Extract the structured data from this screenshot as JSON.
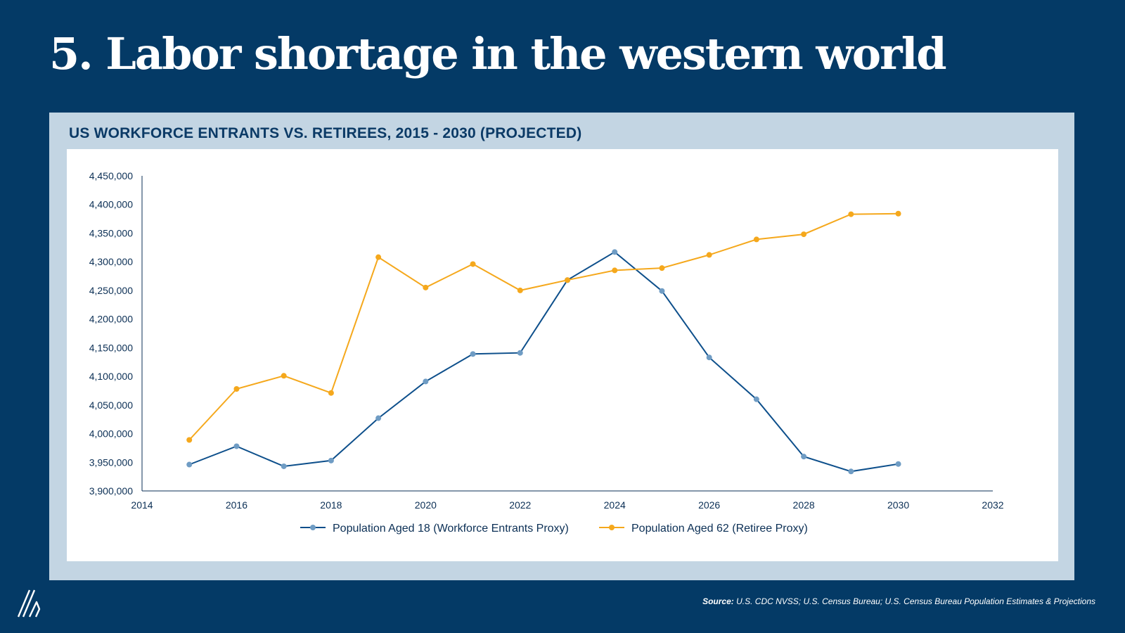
{
  "slide": {
    "title": "5. Labor shortage in the western world"
  },
  "panel": {
    "heading": "US WORKFORCE ENTRANTS VS. RETIREES, 2015 - 2030 (PROJECTED)"
  },
  "footer": {
    "source_label": "Source:",
    "source_text": " U.S. CDC NVSS; U.S. Census Bureau;  U.S. Census Bureau Population Estimates & Projections"
  },
  "colors": {
    "background": "#043a66",
    "panel": "#c3d5e3",
    "series_entrants_line": "#0d4f8b",
    "series_entrants_marker": "#6f9cc4",
    "series_retirees": "#f5a81c",
    "axis": "#0b2f55"
  },
  "chart_data": {
    "type": "line",
    "title": "US WORKFORCE ENTRANTS VS. RETIREES, 2015 - 2030 (PROJECTED)",
    "xlabel": "",
    "ylabel": "",
    "xlim": [
      2014,
      2032
    ],
    "ylim": [
      3900000,
      4450000
    ],
    "x_ticks": [
      2014,
      2016,
      2018,
      2020,
      2022,
      2024,
      2026,
      2028,
      2030,
      2032
    ],
    "y_ticks": [
      3900000,
      3950000,
      4000000,
      4050000,
      4100000,
      4150000,
      4200000,
      4250000,
      4300000,
      4350000,
      4400000,
      4450000
    ],
    "x_tick_labels": [
      "2014",
      "2016",
      "2018",
      "2020",
      "2022",
      "2024",
      "2026",
      "2028",
      "2030",
      "2032"
    ],
    "y_tick_labels": [
      "3,900,000",
      "3,950,000",
      "4,000,000",
      "4,050,000",
      "4,100,000",
      "4,150,000",
      "4,200,000",
      "4,250,000",
      "4,300,000",
      "4,350,000",
      "4,400,000",
      "4,450,000"
    ],
    "grid": false,
    "legend_position": "bottom-center",
    "x": [
      2015,
      2016,
      2017,
      2018,
      2019,
      2020,
      2021,
      2022,
      2023,
      2024,
      2025,
      2026,
      2027,
      2028,
      2029,
      2030
    ],
    "series": [
      {
        "name": "Population Aged 18 (Workforce Entrants Proxy)",
        "color": "#0d4f8b",
        "marker_color": "#6f9cc4",
        "values": [
          3946000,
          3978000,
          3943000,
          3953000,
          4027000,
          4091000,
          4139000,
          4141000,
          4268000,
          4317000,
          4249000,
          4133000,
          4060000,
          3960000,
          3934000,
          3947000
        ]
      },
      {
        "name": "Population Aged 62 (Retiree Proxy)",
        "color": "#f5a81c",
        "marker_color": "#f5a81c",
        "values": [
          3989000,
          4078000,
          4101000,
          4071000,
          4308000,
          4255000,
          4296000,
          4250000,
          4268000,
          4285000,
          4289000,
          4312000,
          4339000,
          4348000,
          4383000,
          4384000
        ]
      }
    ]
  }
}
